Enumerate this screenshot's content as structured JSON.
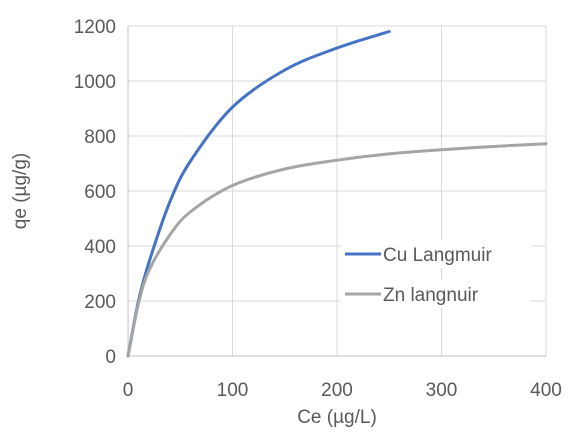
{
  "chart_data": {
    "type": "line",
    "xlabel": "Ce (µg/L)",
    "ylabel": "qe (µg/g)",
    "xlim": [
      0,
      400
    ],
    "ylim": [
      0,
      1200
    ],
    "x_ticks": [
      0,
      100,
      200,
      300,
      400
    ],
    "y_ticks": [
      0,
      200,
      400,
      600,
      800,
      1000,
      1200
    ],
    "grid": true,
    "legend_position": "right",
    "series": [
      {
        "name": "Cu Langmuir",
        "color": "#4472c4",
        "x": [
          0,
          10,
          20,
          40,
          60,
          100,
          150,
          200,
          250
        ],
        "y": [
          0,
          200,
          340,
          560,
          710,
          905,
          1040,
          1120,
          1180
        ]
      },
      {
        "name": "Zn langnuir",
        "color": "#a5a5a5",
        "x": [
          0,
          10,
          20,
          40,
          60,
          100,
          150,
          200,
          250,
          300,
          350,
          400
        ],
        "y": [
          0,
          190,
          310,
          440,
          525,
          620,
          680,
          712,
          735,
          750,
          762,
          772
        ]
      }
    ]
  }
}
